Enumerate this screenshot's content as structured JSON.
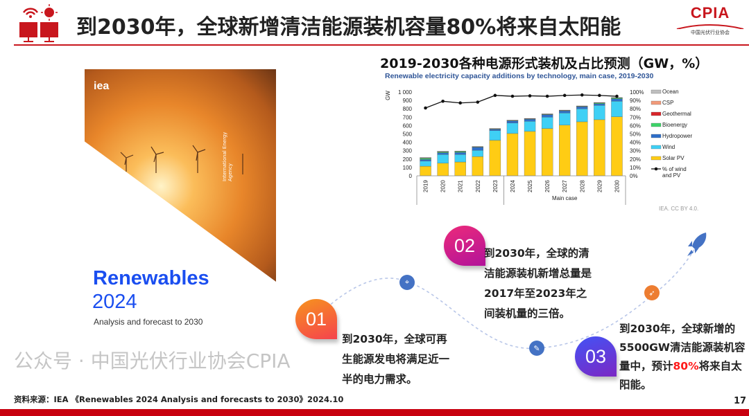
{
  "header": {
    "title": "到2030年，全球新增清洁能源装机容量80%将来自太阳能",
    "logo_text": "CPIA",
    "logo_subtitle": "中国光伏行业协会"
  },
  "cover": {
    "publisher": "iea",
    "vertical_text": "International Energy Agency",
    "title": "Renewables",
    "year": "2024",
    "subtitle": "Analysis and forecast to 2030"
  },
  "chart_title": "2019-2030各种电源形式装机及占比预测（GW，%）",
  "chart_data": {
    "type": "bar",
    "title": "Renewable electricity capacity additions by technology, main case, 2019-2030",
    "ylabel": "GW",
    "ylim": [
      0,
      1000
    ],
    "yticks": [
      "0",
      "100",
      "200",
      "300",
      "400",
      "500",
      "600",
      "700",
      "800",
      "900",
      "1 000"
    ],
    "y2lim": [
      0,
      100
    ],
    "y2ticks": [
      "0%",
      "10%",
      "20%",
      "30%",
      "40%",
      "50%",
      "60%",
      "70%",
      "80%",
      "90%",
      "100%"
    ],
    "categories": [
      "2019",
      "2020",
      "2021",
      "2022",
      "2023",
      "2024",
      "2025",
      "2026",
      "2027",
      "2028",
      "2029",
      "2030"
    ],
    "group_label": "Main case",
    "stacked": true,
    "series": [
      {
        "name": "Solar PV",
        "color": "#ffcc14",
        "values": [
          115,
          150,
          165,
          230,
          425,
          505,
          530,
          565,
          605,
          645,
          670,
          705
        ]
      },
      {
        "name": "Wind",
        "color": "#3fd0f5",
        "values": [
          60,
          105,
          90,
          75,
          115,
          125,
          120,
          135,
          145,
          155,
          170,
          185
        ]
      },
      {
        "name": "Hydropower",
        "color": "#2f6fc9",
        "values": [
          20,
          20,
          25,
          35,
          15,
          25,
          25,
          30,
          25,
          25,
          20,
          30
        ]
      },
      {
        "name": "Bioenergy",
        "color": "#3ed46a",
        "values": [
          15,
          10,
          10,
          5,
          5,
          5,
          5,
          5,
          5,
          5,
          10,
          10
        ]
      },
      {
        "name": "Geothermal",
        "color": "#d9262b",
        "values": [
          2,
          2,
          2,
          2,
          2,
          2,
          2,
          2,
          2,
          2,
          2,
          2
        ]
      },
      {
        "name": "CSP",
        "color": "#f29a7a",
        "values": [
          1,
          1,
          1,
          1,
          1,
          1,
          1,
          1,
          1,
          1,
          1,
          1
        ]
      },
      {
        "name": "Ocean",
        "color": "#bfbfbf",
        "values": [
          7,
          7,
          2,
          2,
          2,
          2,
          2,
          2,
          2,
          2,
          2,
          2
        ]
      }
    ],
    "line": {
      "name": "% of wind and PV",
      "axis": "right",
      "color": "#111111",
      "values": [
        81,
        89,
        87,
        88,
        96,
        95,
        95.5,
        95,
        96,
        96.5,
        96,
        95
      ]
    },
    "legend_position": "right",
    "grid": false,
    "credit": "IEA. CC BY 4.0."
  },
  "points": [
    {
      "num": "01",
      "text": "到2030年，全球可再生能源发电将满足近一半的电力需求。"
    },
    {
      "num": "02",
      "text": "到2030年，全球的清洁能源装机新增总量是2017年至2023年之间装机量的三倍。"
    },
    {
      "num": "03",
      "text_before": "到2030年，全球新增的5500GW清洁能源装机容量中，预计",
      "highlight": "80%",
      "text_after": "将来自太阳能。",
      "highlight_color": "#ff1a1a"
    }
  ],
  "icons": [
    "location-pin-icon",
    "document-edit-icon",
    "paper-plane-icon",
    "rocket-icon"
  ],
  "source": "资料来源：IEA 《Renewables 2024 Analysis and forecasts to 2030》2024.10",
  "page_number": "17",
  "watermark": "公众号 · 中国光伏行业协会CPIA",
  "colors": {
    "brand_red": "#c8161d",
    "footer_red": "#c8000f"
  }
}
